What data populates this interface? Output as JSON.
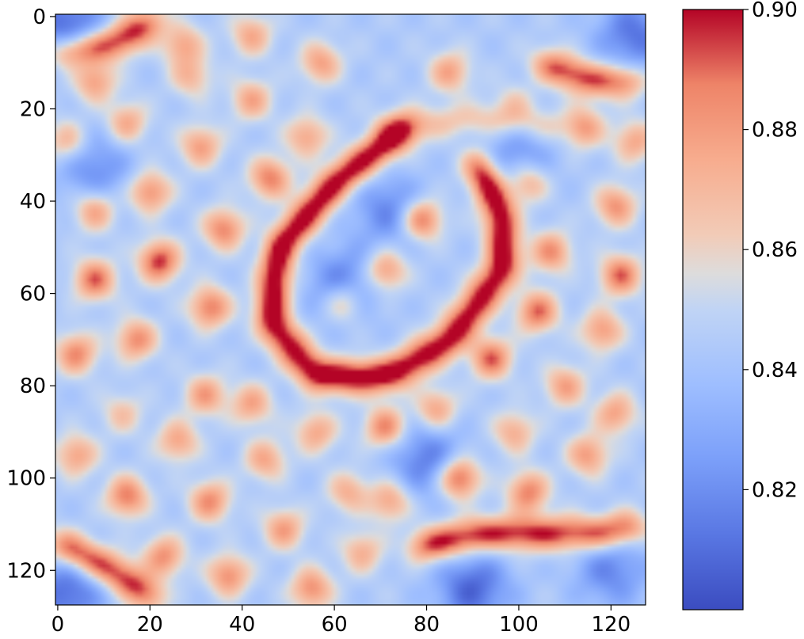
{
  "chart_data": {
    "type": "heatmap",
    "title": "",
    "xlabel": "",
    "ylabel": "",
    "colormap": "coolwarm",
    "grid": false,
    "x_range": [
      0,
      127
    ],
    "y_range": [
      0,
      127
    ],
    "y_axis_direction": "top-to-bottom",
    "x_ticks": [
      0,
      20,
      40,
      60,
      80,
      100,
      120
    ],
    "x_tick_labels": [
      "0",
      "20",
      "40",
      "60",
      "80",
      "100",
      "120"
    ],
    "y_ticks": [
      0,
      20,
      40,
      60,
      80,
      100,
      120
    ],
    "y_tick_labels": [
      "0",
      "20",
      "40",
      "60",
      "80",
      "100",
      "120"
    ],
    "colorbar": {
      "range": [
        0.8,
        0.9
      ],
      "ticks": [
        0.82,
        0.84,
        0.86,
        0.88,
        0.9
      ],
      "tick_labels": [
        "0.82",
        "0.84",
        "0.86",
        "0.88",
        "0.90"
      ],
      "low_color": "#3b4cc0",
      "mid_color": "#dddddd",
      "high_color": "#b40426"
    },
    "baseline_value": 0.844,
    "features": {
      "spots": [
        {
          "x": 8,
          "y": 57,
          "v": 0.89
        },
        {
          "x": 22,
          "y": 53,
          "v": 0.897
        },
        {
          "x": 4,
          "y": 73,
          "v": 0.885
        },
        {
          "x": 17,
          "y": 70,
          "v": 0.884
        },
        {
          "x": 33,
          "y": 63,
          "v": 0.888
        },
        {
          "x": 36,
          "y": 46,
          "v": 0.886
        },
        {
          "x": 46,
          "y": 35,
          "v": 0.887
        },
        {
          "x": 20,
          "y": 38,
          "v": 0.884
        },
        {
          "x": 8,
          "y": 42,
          "v": 0.88
        },
        {
          "x": 31,
          "y": 28,
          "v": 0.879
        },
        {
          "x": 15,
          "y": 23,
          "v": 0.876
        },
        {
          "x": 2,
          "y": 27,
          "v": 0.873
        },
        {
          "x": 27,
          "y": 6,
          "v": 0.876
        },
        {
          "x": 42,
          "y": 18,
          "v": 0.876
        },
        {
          "x": 42,
          "y": 4,
          "v": 0.875
        },
        {
          "x": 57,
          "y": 10,
          "v": 0.878
        },
        {
          "x": 54,
          "y": 26,
          "v": 0.877
        },
        {
          "x": 29,
          "y": 13,
          "v": 0.87
        },
        {
          "x": 79,
          "y": 44,
          "v": 0.893
        },
        {
          "x": 71,
          "y": 55,
          "v": 0.884
        },
        {
          "x": 62,
          "y": 62,
          "v": 0.876
        },
        {
          "x": 85,
          "y": 12,
          "v": 0.877
        },
        {
          "x": 99,
          "y": 19,
          "v": 0.862
        },
        {
          "x": 114,
          "y": 24,
          "v": 0.88
        },
        {
          "x": 125,
          "y": 27,
          "v": 0.876
        },
        {
          "x": 102,
          "y": 36,
          "v": 0.878
        },
        {
          "x": 121,
          "y": 41,
          "v": 0.882
        },
        {
          "x": 107,
          "y": 51,
          "v": 0.883
        },
        {
          "x": 122,
          "y": 56,
          "v": 0.89
        },
        {
          "x": 104,
          "y": 64,
          "v": 0.89
        },
        {
          "x": 118,
          "y": 68,
          "v": 0.88
        },
        {
          "x": 94,
          "y": 74,
          "v": 0.891
        },
        {
          "x": 110,
          "y": 80,
          "v": 0.878
        },
        {
          "x": 121,
          "y": 86,
          "v": 0.878
        },
        {
          "x": 99,
          "y": 90,
          "v": 0.874
        },
        {
          "x": 115,
          "y": 95,
          "v": 0.88
        },
        {
          "x": 102,
          "y": 103,
          "v": 0.887
        },
        {
          "x": 87,
          "y": 100,
          "v": 0.898
        },
        {
          "x": 71,
          "y": 89,
          "v": 0.887
        },
        {
          "x": 82,
          "y": 85,
          "v": 0.878
        },
        {
          "x": 56,
          "y": 90,
          "v": 0.876
        },
        {
          "x": 63,
          "y": 103,
          "v": 0.873
        },
        {
          "x": 72,
          "y": 105,
          "v": 0.878
        },
        {
          "x": 49,
          "y": 111,
          "v": 0.879
        },
        {
          "x": 55,
          "y": 124,
          "v": 0.884
        },
        {
          "x": 37,
          "y": 121,
          "v": 0.884
        },
        {
          "x": 23,
          "y": 117,
          "v": 0.883
        },
        {
          "x": 33,
          "y": 105,
          "v": 0.884
        },
        {
          "x": 15,
          "y": 104,
          "v": 0.888
        },
        {
          "x": 26,
          "y": 92,
          "v": 0.877
        },
        {
          "x": 4,
          "y": 95,
          "v": 0.878
        },
        {
          "x": 45,
          "y": 96,
          "v": 0.876
        },
        {
          "x": 66,
          "y": 116,
          "v": 0.873
        },
        {
          "x": 14,
          "y": 86,
          "v": 0.866
        },
        {
          "x": 32,
          "y": 82,
          "v": 0.879
        },
        {
          "x": 42,
          "y": 84,
          "v": 0.877
        },
        {
          "x": 8,
          "y": 14,
          "v": 0.88
        }
      ],
      "ridges": [
        {
          "points": [
            [
              76,
              24
            ],
            [
              60,
              36
            ],
            [
              48,
              50
            ],
            [
              46,
              66
            ],
            [
              56,
              78
            ],
            [
              72,
              78
            ],
            [
              85,
              70
            ],
            [
              97,
              54
            ],
            [
              96,
              42
            ],
            [
              90,
              30
            ]
          ],
          "v": 0.878
        },
        {
          "points": [
            [
              0,
              114
            ],
            [
              12,
              120
            ],
            [
              22,
              127
            ]
          ],
          "v": 0.874
        },
        {
          "points": [
            [
              78,
              115
            ],
            [
              92,
              112
            ],
            [
              104,
              112
            ],
            [
              118,
              112
            ],
            [
              127,
              110
            ]
          ],
          "v": 0.874
        },
        {
          "points": [
            [
              70,
              24
            ],
            [
              92,
              22
            ],
            [
              110,
              24
            ]
          ],
          "v": 0.855
        },
        {
          "points": [
            [
              0,
              8
            ],
            [
              12,
              6
            ],
            [
              22,
              0
            ]
          ],
          "v": 0.874
        },
        {
          "points": [
            [
              105,
              10
            ],
            [
              116,
              14
            ],
            [
              127,
              14
            ]
          ],
          "v": 0.872
        }
      ],
      "troughs": [
        {
          "x": 2,
          "y": 2,
          "v": 0.808
        },
        {
          "x": 125,
          "y": 4,
          "v": 0.812
        },
        {
          "x": 2,
          "y": 125,
          "v": 0.81
        },
        {
          "x": 90,
          "y": 124,
          "v": 0.808
        },
        {
          "x": 62,
          "y": 58,
          "v": 0.815
        },
        {
          "x": 72,
          "y": 42,
          "v": 0.818
        },
        {
          "x": 80,
          "y": 96,
          "v": 0.815
        },
        {
          "x": 8,
          "y": 33,
          "v": 0.82
        },
        {
          "x": 100,
          "y": 30,
          "v": 0.822
        },
        {
          "x": 120,
          "y": 120,
          "v": 0.818
        }
      ]
    }
  }
}
